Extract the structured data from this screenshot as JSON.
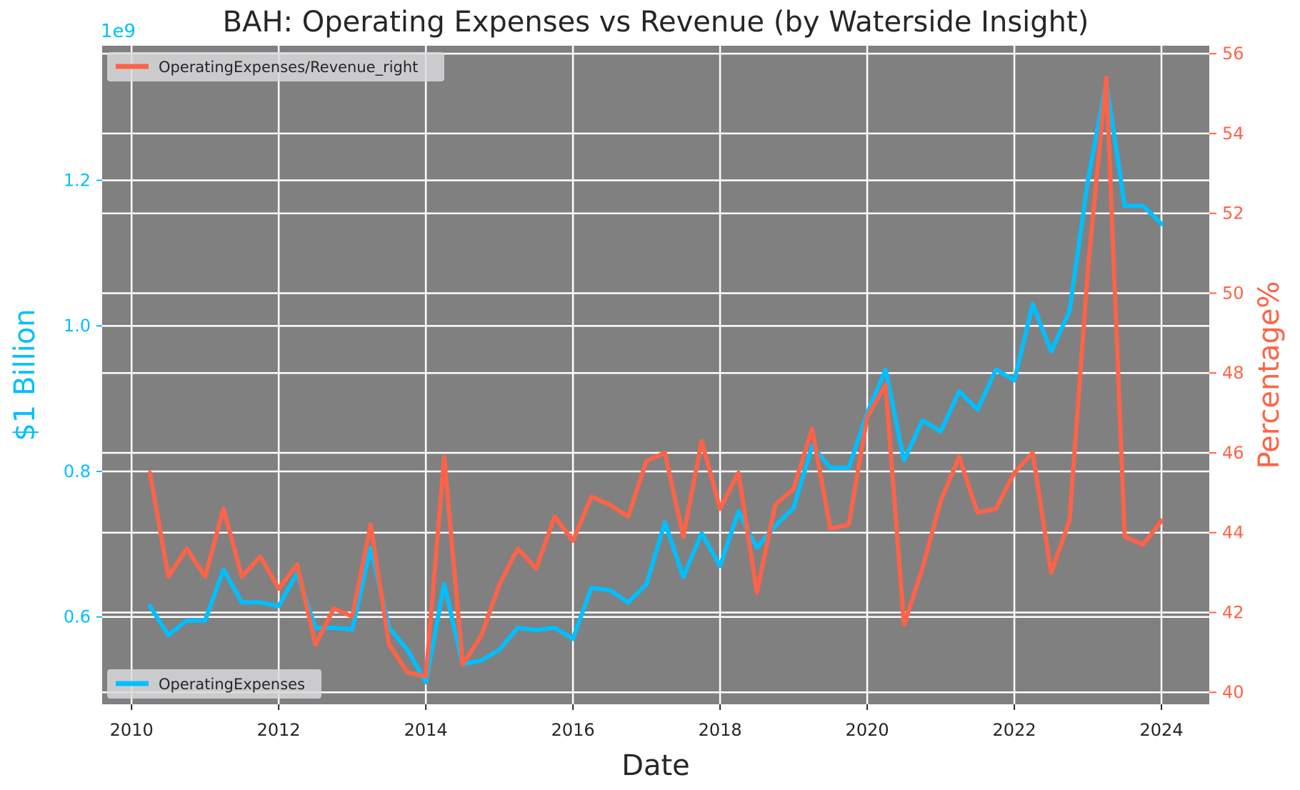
{
  "chart_data": {
    "type": "line",
    "title": "BAH: Operating Expenses vs Revenue (by Waterside Insight)",
    "xlabel": "Date",
    "ylabel_left": "$1 Billion",
    "ylabel_right": "Percentage%",
    "left_axis_multiplier": "1e9",
    "xlim": [
      2009.6,
      2024.65
    ],
    "ylim_left": [
      0.48,
      1.385
    ],
    "ylim_right": [
      39.7,
      56.2
    ],
    "x_ticks": [
      2010,
      2012,
      2014,
      2016,
      2018,
      2020,
      2022,
      2024
    ],
    "x_tick_labels": [
      "2010",
      "2012",
      "2014",
      "2016",
      "2018",
      "2020",
      "2022",
      "2024"
    ],
    "y_ticks_left": [
      0.6,
      0.8,
      1.0,
      1.2
    ],
    "y_tick_labels_left": [
      "0.6",
      "0.8",
      "1.0",
      "1.2"
    ],
    "y_ticks_right": [
      40,
      42,
      44,
      46,
      48,
      50,
      52,
      54,
      56
    ],
    "y_tick_labels_right": [
      "40",
      "42",
      "44",
      "46",
      "48",
      "50",
      "52",
      "54",
      "56"
    ],
    "grid": true,
    "background_color": "#808080",
    "legend_right_placement": "upper-left",
    "legend_left_placement": "lower-left",
    "x": [
      2010.25,
      2010.5,
      2010.75,
      2011.0,
      2011.25,
      2011.5,
      2011.75,
      2012.0,
      2012.25,
      2012.5,
      2012.75,
      2013.0,
      2013.25,
      2013.5,
      2013.75,
      2014.0,
      2014.25,
      2014.5,
      2014.75,
      2015.0,
      2015.25,
      2015.5,
      2015.75,
      2016.0,
      2016.25,
      2016.5,
      2016.75,
      2017.0,
      2017.25,
      2017.5,
      2017.75,
      2018.0,
      2018.25,
      2018.5,
      2018.75,
      2019.0,
      2019.25,
      2019.5,
      2019.75,
      2020.0,
      2020.25,
      2020.5,
      2020.75,
      2021.0,
      2021.25,
      2021.5,
      2021.75,
      2022.0,
      2022.25,
      2022.5,
      2022.75,
      2023.0,
      2023.25,
      2023.5,
      2023.75,
      2024.0
    ],
    "series": [
      {
        "name": "OperatingExpenses",
        "axis": "left",
        "color": "#00BFFF",
        "values": [
          0.615,
          0.575,
          0.595,
          0.595,
          0.665,
          0.62,
          0.62,
          0.615,
          0.66,
          0.585,
          0.585,
          0.583,
          0.695,
          0.585,
          0.555,
          0.51,
          0.645,
          0.535,
          0.54,
          0.555,
          0.585,
          0.582,
          0.585,
          0.57,
          0.64,
          0.637,
          0.62,
          0.645,
          0.73,
          0.655,
          0.715,
          0.67,
          0.745,
          0.695,
          0.725,
          0.75,
          0.835,
          0.805,
          0.805,
          0.88,
          0.94,
          0.815,
          0.87,
          0.855,
          0.91,
          0.885,
          0.94,
          0.925,
          1.03,
          0.965,
          1.02,
          1.2,
          1.335,
          1.165,
          1.165,
          1.14
        ]
      },
      {
        "name": "OperatingExpenses/Revenue_right",
        "axis": "right",
        "color": "#FF6347",
        "values": [
          45.5,
          42.9,
          43.6,
          42.9,
          44.6,
          42.9,
          43.4,
          42.6,
          43.2,
          41.2,
          42.1,
          41.9,
          44.2,
          41.2,
          40.5,
          40.4,
          45.9,
          40.7,
          41.4,
          42.7,
          43.6,
          43.1,
          44.4,
          43.8,
          44.9,
          44.7,
          44.4,
          45.8,
          46.0,
          43.9,
          46.3,
          44.6,
          45.5,
          42.5,
          44.7,
          45.1,
          46.6,
          44.1,
          44.2,
          46.9,
          47.7,
          41.7,
          43.1,
          44.8,
          45.9,
          44.5,
          44.6,
          45.5,
          46.0,
          43.0,
          44.3,
          50.6,
          55.4,
          43.9,
          43.7,
          44.3
        ]
      }
    ]
  }
}
